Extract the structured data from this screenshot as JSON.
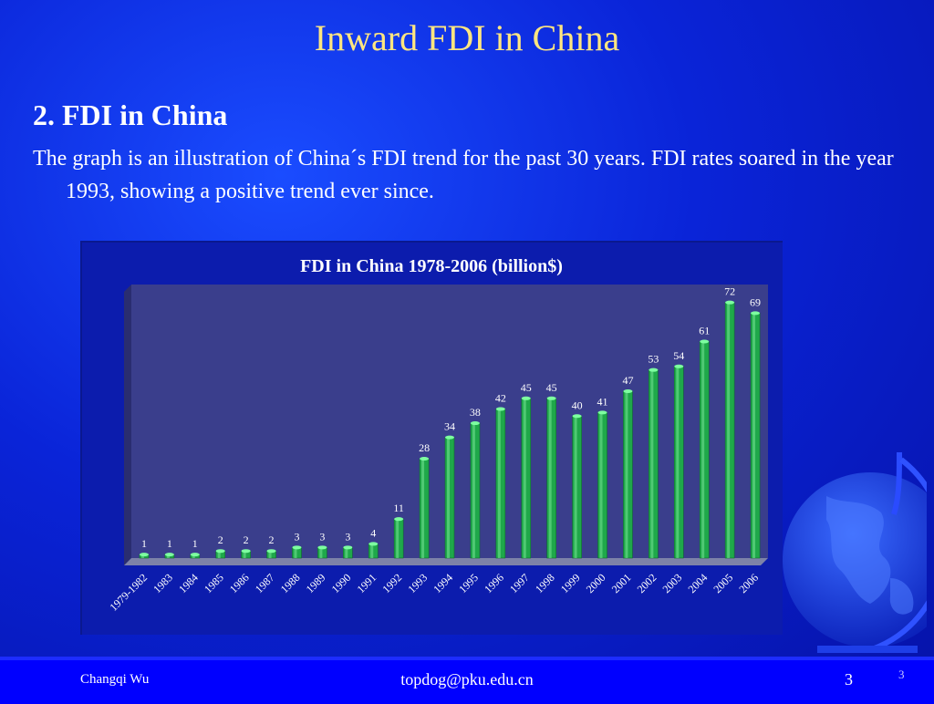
{
  "slide": {
    "title": "Inward FDI in China",
    "heading": "2. FDI in China",
    "body": "The graph is an illustration of China´s FDI trend for the past 30 years. FDI rates soared in the year 1993, showing a positive trend ever since."
  },
  "chart_data": {
    "type": "bar",
    "title": "FDI in China 1978-2006 (billion$)",
    "categories": [
      "1979-1982",
      "1983",
      "1984",
      "1985",
      "1986",
      "1987",
      "1988",
      "1989",
      "1990",
      "1991",
      "1992",
      "1993",
      "1994",
      "1995",
      "1996",
      "1997",
      "1998",
      "1999",
      "2000",
      "2001",
      "2002",
      "2003",
      "2004",
      "2005",
      "2006"
    ],
    "values": [
      1,
      1,
      1,
      2,
      2,
      2,
      3,
      3,
      3,
      4,
      11,
      28,
      34,
      38,
      42,
      45,
      45,
      40,
      41,
      47,
      53,
      54,
      61,
      72,
      69
    ],
    "ylim": [
      0,
      75
    ],
    "grid": false,
    "legend": "none",
    "bar_color": "#1fa84a",
    "plot_bg": "#3a3e8c"
  },
  "footer": {
    "author": "Changqi Wu",
    "email": "topdog@pku.edu.cn",
    "page": "3",
    "corner_page": "3"
  }
}
